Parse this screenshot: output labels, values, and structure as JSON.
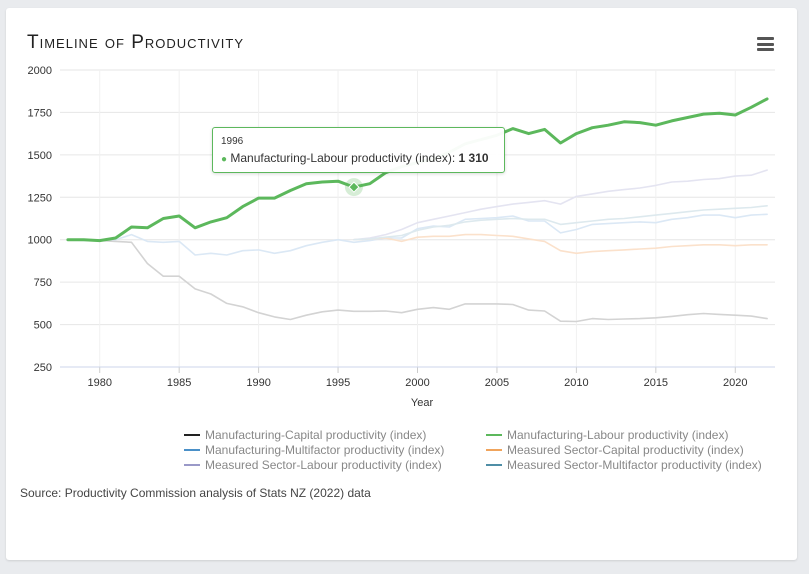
{
  "title": "Timeline of Productivity",
  "source": "Source: Productivity Commission analysis of Stats NZ (2022) data",
  "tooltip": {
    "year": "1996",
    "series": "Manufacturing-Labour productivity (index)",
    "value": "1 310"
  },
  "chart_data": {
    "type": "line",
    "title": "Timeline of Productivity",
    "xlabel": "Year",
    "ylabel": "",
    "xlim": [
      1977.5,
      2022.5
    ],
    "ylim": [
      250,
      2000
    ],
    "xticks": [
      1980,
      1985,
      1990,
      1995,
      2000,
      2005,
      2010,
      2015,
      2020
    ],
    "yticks": [
      250,
      500,
      750,
      1000,
      1250,
      1500,
      1750,
      2000
    ],
    "highlighted_series": "Manufacturing-Labour productivity (index)",
    "highlighted_point": {
      "x": 1996,
      "y": 1310
    },
    "series": [
      {
        "name": "Manufacturing-Capital productivity (index)",
        "color": "#d3d3d3",
        "x": [
          1978,
          1979,
          1980,
          1981,
          1982,
          1983,
          1984,
          1985,
          1986,
          1987,
          1988,
          1989,
          1990,
          1991,
          1992,
          1993,
          1994,
          1995,
          1996,
          1997,
          1998,
          1999,
          2000,
          2001,
          2002,
          2003,
          2004,
          2005,
          2006,
          2007,
          2008,
          2009,
          2010,
          2011,
          2012,
          2013,
          2014,
          2015,
          2016,
          2017,
          2018,
          2019,
          2020,
          2021,
          2022
        ],
        "values": [
          1000,
          1000,
          995,
          990,
          985,
          860,
          785,
          785,
          710,
          680,
          625,
          605,
          570,
          545,
          530,
          555,
          575,
          585,
          578,
          578,
          580,
          570,
          590,
          600,
          590,
          622,
          622,
          622,
          618,
          585,
          580,
          520,
          518,
          535,
          530,
          533,
          535,
          540,
          548,
          558,
          565,
          560,
          555,
          550,
          535
        ]
      },
      {
        "name": "Manufacturing-Labour productivity (index)",
        "color": "#5cb85c",
        "x": [
          1978,
          1979,
          1980,
          1981,
          1982,
          1983,
          1984,
          1985,
          1986,
          1987,
          1988,
          1989,
          1990,
          1991,
          1992,
          1993,
          1994,
          1995,
          1996,
          1997,
          1998,
          1999,
          2000,
          2001,
          2002,
          2003,
          2004,
          2005,
          2006,
          2007,
          2008,
          2009,
          2010,
          2011,
          2012,
          2013,
          2014,
          2015,
          2016,
          2017,
          2018,
          2019,
          2020,
          2021,
          2022
        ],
        "values": [
          1000,
          1000,
          995,
          1010,
          1075,
          1070,
          1125,
          1140,
          1070,
          1105,
          1130,
          1195,
          1245,
          1245,
          1290,
          1330,
          1340,
          1345,
          1310,
          1330,
          1395,
          1430,
          1455,
          1475,
          1515,
          1565,
          1590,
          1615,
          1655,
          1625,
          1650,
          1570,
          1625,
          1660,
          1675,
          1695,
          1690,
          1675,
          1700,
          1720,
          1740,
          1745,
          1735,
          1780,
          1830
        ]
      },
      {
        "name": "Manufacturing-Multifactor productivity (index)",
        "color": "#dbe8f5",
        "x": [
          1978,
          1979,
          1980,
          1981,
          1982,
          1983,
          1984,
          1985,
          1986,
          1987,
          1988,
          1989,
          1990,
          1991,
          1992,
          1993,
          1994,
          1995,
          1996,
          1997,
          1998,
          1999,
          2000,
          2001,
          2002,
          2003,
          2004,
          2005,
          2006,
          2007,
          2008,
          2009,
          2010,
          2011,
          2012,
          2013,
          2014,
          2015,
          2016,
          2017,
          2018,
          2019,
          2020,
          2021,
          2022
        ],
        "values": [
          1000,
          995,
          1000,
          1000,
          1030,
          990,
          985,
          990,
          910,
          920,
          910,
          935,
          940,
          920,
          935,
          965,
          985,
          1000,
          985,
          995,
          1010,
          1010,
          1065,
          1080,
          1075,
          1120,
          1125,
          1130,
          1140,
          1110,
          1110,
          1040,
          1060,
          1090,
          1095,
          1100,
          1105,
          1100,
          1120,
          1130,
          1145,
          1145,
          1130,
          1145,
          1150
        ]
      },
      {
        "name": "Measured Sector-Capital productivity (index)",
        "color": "#fbe1cb",
        "x": [
          1996,
          1997,
          1998,
          1999,
          2000,
          2001,
          2002,
          2003,
          2004,
          2005,
          2006,
          2007,
          2008,
          2009,
          2010,
          2011,
          2012,
          2013,
          2014,
          2015,
          2016,
          2017,
          2018,
          2019,
          2020,
          2021,
          2022
        ],
        "values": [
          1000,
          1005,
          1010,
          990,
          1015,
          1020,
          1020,
          1030,
          1030,
          1025,
          1020,
          1005,
          990,
          935,
          920,
          930,
          935,
          940,
          945,
          950,
          960,
          965,
          970,
          970,
          965,
          970,
          970
        ]
      },
      {
        "name": "Measured Sector-Labour productivity (index)",
        "color": "#e4e4f1",
        "x": [
          1996,
          1997,
          1998,
          1999,
          2000,
          2001,
          2002,
          2003,
          2004,
          2005,
          2006,
          2007,
          2008,
          2009,
          2010,
          2011,
          2012,
          2013,
          2014,
          2015,
          2016,
          2017,
          2018,
          2019,
          2020,
          2021,
          2022
        ],
        "values": [
          1000,
          1010,
          1030,
          1060,
          1100,
          1120,
          1140,
          1160,
          1180,
          1195,
          1210,
          1220,
          1230,
          1210,
          1255,
          1270,
          1285,
          1295,
          1305,
          1320,
          1340,
          1345,
          1355,
          1360,
          1375,
          1380,
          1410
        ]
      },
      {
        "name": "Measured Sector-Multifactor productivity (index)",
        "color": "#dde9ee",
        "x": [
          1996,
          1997,
          1998,
          1999,
          2000,
          2001,
          2002,
          2003,
          2004,
          2005,
          2006,
          2007,
          2008,
          2009,
          2010,
          2011,
          2012,
          2013,
          2014,
          2015,
          2016,
          2017,
          2018,
          2019,
          2020,
          2021,
          2022
        ],
        "values": [
          1000,
          1005,
          1015,
          1025,
          1055,
          1075,
          1085,
          1105,
          1115,
          1120,
          1125,
          1120,
          1120,
          1090,
          1100,
          1110,
          1120,
          1125,
          1135,
          1145,
          1155,
          1165,
          1175,
          1180,
          1185,
          1190,
          1200
        ]
      }
    ],
    "legend": [
      {
        "label": "Manufacturing-Capital productivity (index)",
        "color": "#222222"
      },
      {
        "label": "Manufacturing-Labour productivity (index)",
        "color": "#5cb85c"
      },
      {
        "label": "Manufacturing-Multifactor productivity (index)",
        "color": "#4a90c8"
      },
      {
        "label": "Measured Sector-Capital productivity (index)",
        "color": "#f0a45c"
      },
      {
        "label": "Measured Sector-Labour productivity (index)",
        "color": "#9a99c8"
      },
      {
        "label": "Measured Sector-Multifactor productivity (index)",
        "color": "#4f8ea6"
      }
    ]
  }
}
